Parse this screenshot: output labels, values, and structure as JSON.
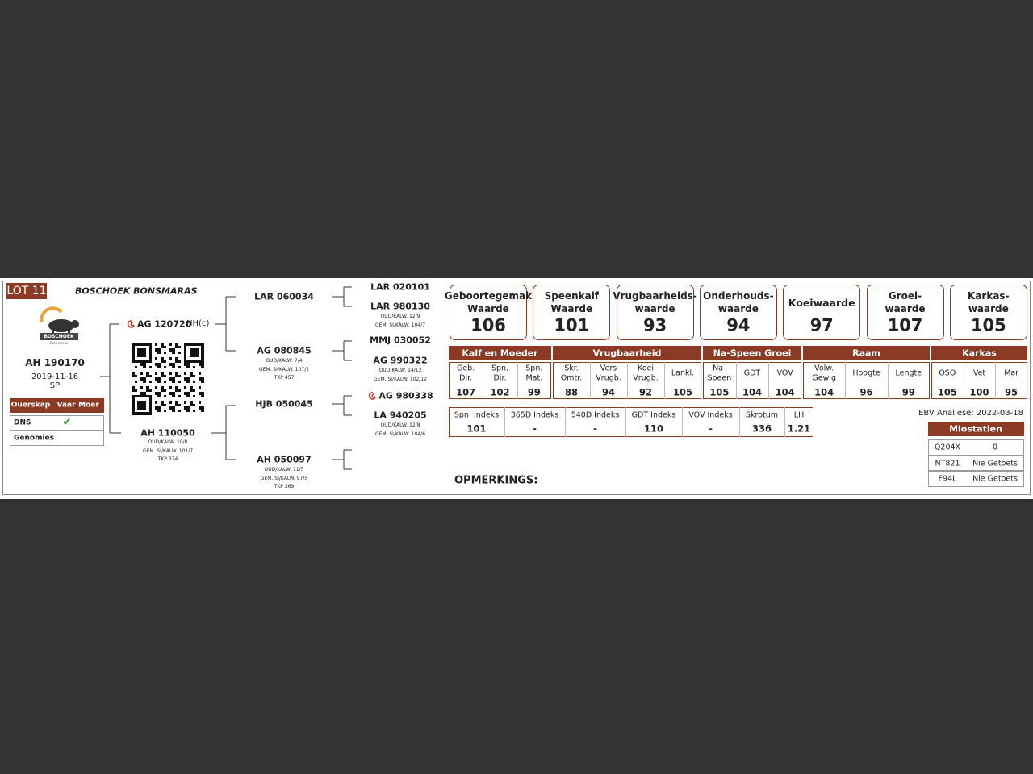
{
  "header": {
    "lot": "LOT 11",
    "farm": "BOSCHOEK BONSMARAS"
  },
  "logo": {
    "name": "BOSCHOEK",
    "sub": "Bonsmaras"
  },
  "animal": {
    "id": "AH 190170",
    "birth_date": "2019-11-16",
    "sex": "SP"
  },
  "parentage": {
    "columns": [
      "Ouerskap",
      "Vaar",
      "Moer"
    ],
    "rows": [
      {
        "label": "DNS",
        "vaar": "✔"
      },
      {
        "label": "Genomies"
      }
    ]
  },
  "pedigree": {
    "sire": {
      "id": "AG 120720",
      "tag": "HH(c)"
    },
    "dam": {
      "id": "AH 110050",
      "details": [
        "OUD/KALW. 10/8",
        "GEM. SI/KALW. 101/7",
        "TKP 374"
      ]
    },
    "gen2": [
      {
        "id": "LAR 060034"
      },
      {
        "id": "AG 080845",
        "details": [
          "OUD/KALW. 7/4",
          "GEM. SI/KALW. 107/2",
          "TKP 457"
        ]
      },
      {
        "id": "HJB 050045"
      },
      {
        "id": "AH 050097",
        "details": [
          "OUD/KALW. 11/5",
          "GEM. SI/KALW. 97/5",
          "TKP 369"
        ]
      }
    ],
    "gen3": [
      {
        "id": "LAR 020101"
      },
      {
        "id": "LAR 980130",
        "details": [
          "OUD/KALW. 12/9",
          "GEM. SI/KALW. 104/7"
        ]
      },
      {
        "id": "MMJ 030052"
      },
      {
        "id": "AG 990322",
        "details": [
          "OUD/KALW. 14/12",
          "GEM. SI/KALW. 102/12"
        ]
      },
      {
        "id": "AG 980338"
      },
      {
        "id": "LA 940205",
        "details": [
          "OUD/KALW. 12/8",
          "GEM. SI/KALW. 104/6"
        ]
      }
    ]
  },
  "ebv_cards": [
    {
      "label": [
        "Geboortegemak",
        "Waarde"
      ],
      "value": 106
    },
    {
      "label": [
        "Speenkalf",
        "Waarde"
      ],
      "value": 101
    },
    {
      "label": [
        "Vrugbaarheids-",
        "waarde"
      ],
      "value": 93
    },
    {
      "label": [
        "Onderhouds-",
        "waarde"
      ],
      "value": 94
    },
    {
      "label": [
        "Koeiwaarde"
      ],
      "value": 97
    },
    {
      "label": [
        "Groei-",
        "waarde"
      ],
      "value": 107
    },
    {
      "label": [
        "Karkas-",
        "waarde"
      ],
      "value": 105
    }
  ],
  "ebv_groups": [
    {
      "name": "Kalf en Moeder",
      "columns": [
        {
          "label": [
            "Geb.",
            "Dir."
          ],
          "value": 107
        },
        {
          "label": [
            "Spn.",
            "Dir."
          ],
          "value": 102
        },
        {
          "label": [
            "Spn.",
            "Mat."
          ],
          "value": 99
        }
      ]
    },
    {
      "name": "Vrugbaarheid",
      "columns": [
        {
          "label": [
            "Skr.",
            "Omtr."
          ],
          "value": 88
        },
        {
          "label": [
            "Vers",
            "Vrugb."
          ],
          "value": 94
        },
        {
          "label": [
            "Koei",
            "Vrugb."
          ],
          "value": 92
        },
        {
          "label": [
            "Lankl."
          ],
          "value": 105
        }
      ]
    },
    {
      "name": "Na-Speen Groei",
      "columns": [
        {
          "label": [
            "Na-",
            "Speen"
          ],
          "value": 105
        },
        {
          "label": [
            "GDT"
          ],
          "value": 104
        },
        {
          "label": [
            "VOV"
          ],
          "value": 104
        }
      ]
    },
    {
      "name": "Raam",
      "columns": [
        {
          "label": [
            "Volw.",
            "Gewig"
          ],
          "value": 104
        },
        {
          "label": [
            "Hoogte"
          ],
          "value": 96
        },
        {
          "label": [
            "Lengte"
          ],
          "value": 99
        }
      ]
    },
    {
      "name": "Karkas",
      "columns": [
        {
          "label": [
            "OSO"
          ],
          "value": 105
        },
        {
          "label": [
            "Vet"
          ],
          "value": 100
        },
        {
          "label": [
            "Mar"
          ],
          "value": 95
        }
      ]
    }
  ],
  "indexes": [
    {
      "label": "Spn. Indeks",
      "value": 101
    },
    {
      "label": "365D Indeks",
      "value": "-"
    },
    {
      "label": "540D Indeks",
      "value": "-"
    },
    {
      "label": "GDT Indeks",
      "value": 110
    },
    {
      "label": "VOV Indeks",
      "value": "-"
    },
    {
      "label": "Skrotum",
      "value": 336
    },
    {
      "label": "LH",
      "value": 1.21
    }
  ],
  "analysis_date": "EBV Analiese: 2022-03-18",
  "myostatin": {
    "title": "Miostatien",
    "rows": [
      [
        "Q204X",
        "0"
      ],
      [
        "NT821",
        "Nie Getoets"
      ],
      [
        "F94L",
        "Nie Getoets"
      ]
    ]
  },
  "remarks": "OPMERKINGS:"
}
